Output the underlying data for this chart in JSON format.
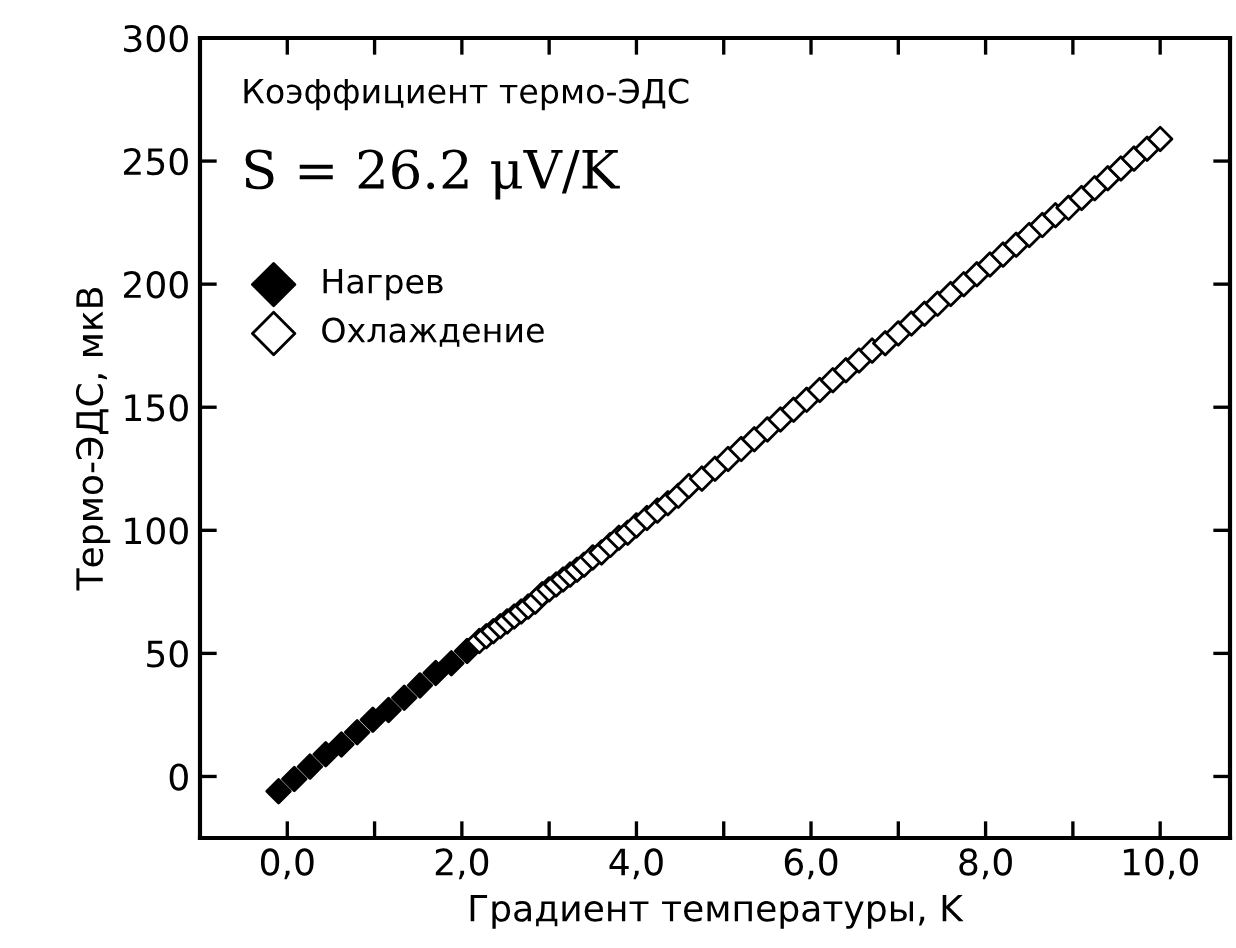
{
  "chart_data": {
    "type": "scatter",
    "xlabel": "Градиент температуры, K",
    "ylabel": "Термо-ЭДС, мкВ",
    "annotations": [
      "Коэффициент термо-ЭДС",
      "S = 26.2 μV/K"
    ],
    "xlim": [
      -1.0,
      10.8
    ],
    "ylim": [
      -25,
      300
    ],
    "xticks": [
      {
        "value": 0,
        "label": "0,0"
      },
      {
        "value": 1,
        "label": null
      },
      {
        "value": 2,
        "label": "2,0"
      },
      {
        "value": 3,
        "label": null
      },
      {
        "value": 4,
        "label": "4,0"
      },
      {
        "value": 5,
        "label": null
      },
      {
        "value": 6,
        "label": "6,0"
      },
      {
        "value": 7,
        "label": null
      },
      {
        "value": 8,
        "label": "8,0"
      },
      {
        "value": 9,
        "label": null
      },
      {
        "value": 10,
        "label": "10,0"
      }
    ],
    "yticks": [
      0,
      50,
      100,
      150,
      200,
      250,
      300
    ],
    "grid": false,
    "legend": "top left",
    "marker": "diamond",
    "series": [
      {
        "name": "Нагрев",
        "color": "#000000",
        "x": [
          -0.1,
          0.08,
          0.26,
          0.44,
          0.62,
          0.8,
          0.98,
          1.16,
          1.34,
          1.52,
          1.7,
          1.88,
          2.06
        ],
        "values": [
          -6,
          -1,
          4,
          9,
          13,
          18,
          23,
          27,
          32,
          37,
          42,
          46,
          51
        ]
      },
      {
        "name": "Охлаждение",
        "color": "#ffffff",
        "x": [
          2.2,
          2.28,
          2.36,
          2.44,
          2.52,
          2.6,
          2.68,
          2.76,
          2.84,
          2.92,
          3.0,
          3.08,
          3.16,
          3.24,
          3.32,
          3.4,
          3.5,
          3.6,
          3.7,
          3.8,
          3.9,
          4.0,
          4.12,
          4.24,
          4.36,
          4.48,
          4.6,
          4.75,
          4.9,
          5.05,
          5.2,
          5.35,
          5.5,
          5.65,
          5.8,
          5.95,
          6.1,
          6.25,
          6.4,
          6.55,
          6.7,
          6.85,
          7.0,
          7.15,
          7.3,
          7.45,
          7.6,
          7.75,
          7.9,
          8.05,
          8.2,
          8.35,
          8.5,
          8.65,
          8.8,
          8.95,
          9.1,
          9.25,
          9.4,
          9.55,
          9.7,
          9.85,
          10.0
        ],
        "values": [
          55,
          57,
          59,
          61,
          63,
          65,
          67,
          69,
          71,
          74,
          76,
          78,
          80,
          82,
          84,
          86,
          89,
          91,
          94,
          97,
          99,
          102,
          105,
          108,
          111,
          114,
          118,
          121,
          125,
          129,
          133,
          137,
          141,
          145,
          149,
          153,
          157,
          161,
          165,
          169,
          173,
          176,
          180,
          184,
          188,
          192,
          196,
          200,
          204,
          208,
          212,
          216,
          220,
          224,
          228,
          231,
          235,
          239,
          243,
          247,
          251,
          255,
          259
        ]
      }
    ]
  }
}
